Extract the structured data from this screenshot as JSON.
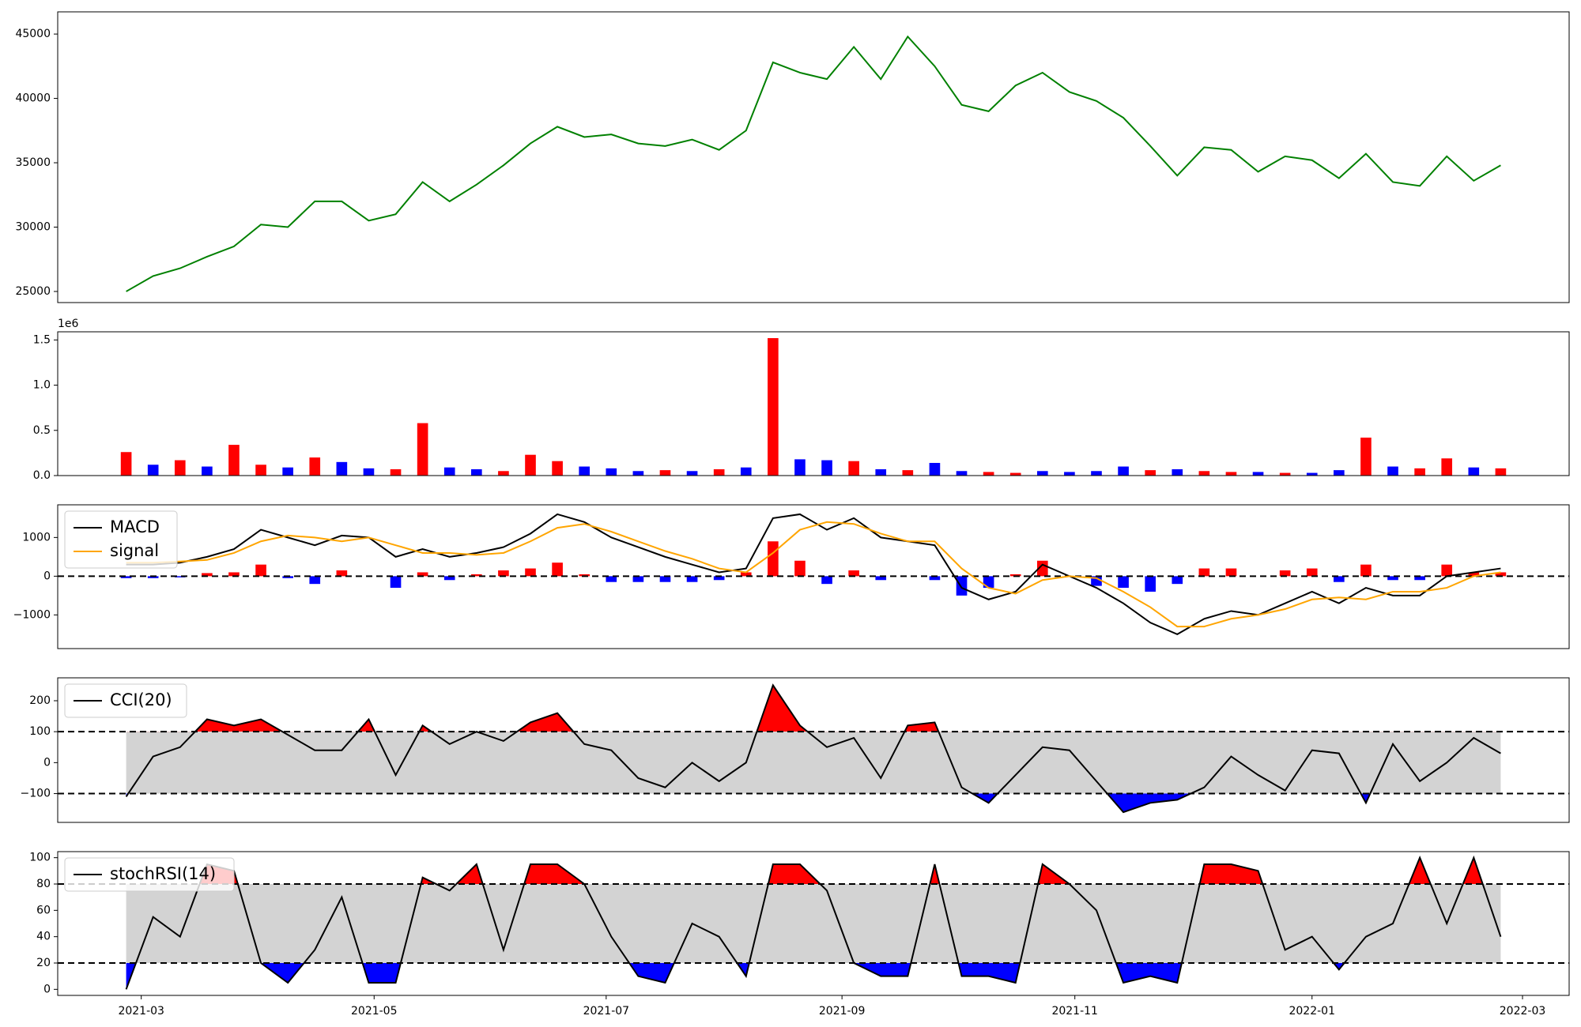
{
  "chart_data": [
    {
      "type": "line",
      "xlim": [
        -2.54,
        53.54
      ],
      "ylim": [
        24137,
        46725
      ],
      "yticks": [
        25000,
        30000,
        35000,
        40000,
        45000
      ],
      "series": [
        {
          "color": "#008000",
          "values": [
            25000,
            26200,
            26800,
            27700,
            28500,
            30200,
            30000,
            32000,
            32000,
            30500,
            31000,
            33500,
            32000,
            33300,
            34800,
            36500,
            37800,
            37000,
            37200,
            36500,
            36300,
            36800,
            36000,
            37500,
            42800,
            42000,
            41500,
            44000,
            41500,
            44800,
            42500,
            39500,
            39000,
            41000,
            42000,
            40500,
            39800,
            38500,
            36300,
            34000,
            36200,
            36000,
            34300,
            35500,
            35200,
            33800,
            35700,
            33500,
            33200,
            35500,
            33600,
            34800
          ]
        }
      ]
    },
    {
      "type": "bar",
      "offset_label": "1e6",
      "xlim": [
        -2.54,
        53.54
      ],
      "ylim": [
        0,
        1.59
      ],
      "yticks": [
        {
          "value": 0,
          "label": "0.0"
        },
        0.5,
        {
          "value": 1,
          "label": "1.0"
        },
        1.5
      ],
      "values": [
        0.26,
        0.12,
        0.17,
        0.1,
        0.34,
        0.12,
        0.09,
        0.2,
        0.15,
        0.08,
        0.07,
        0.58,
        0.09,
        0.07,
        0.05,
        0.23,
        0.16,
        0.1,
        0.08,
        0.05,
        0.06,
        0.05,
        0.07,
        0.09,
        1.52,
        0.18,
        0.17,
        0.16,
        0.07,
        0.06,
        0.14,
        0.05,
        0.04,
        0.03,
        0.05,
        0.04,
        0.05,
        0.1,
        0.06,
        0.07,
        0.05,
        0.04,
        0.04,
        0.03,
        0.03,
        0.06,
        0.42,
        0.1,
        0.08,
        0.19,
        0.09,
        0.08
      ],
      "colors": [
        "#ff0000",
        "#0000ff",
        "#ff0000",
        "#0000ff",
        "#ff0000",
        "#ff0000",
        "#0000ff",
        "#ff0000",
        "#0000ff",
        "#0000ff",
        "#ff0000",
        "#ff0000",
        "#0000ff",
        "#0000ff",
        "#ff0000",
        "#ff0000",
        "#ff0000",
        "#0000ff",
        "#0000ff",
        "#0000ff",
        "#ff0000",
        "#0000ff",
        "#ff0000",
        "#0000ff",
        "#ff0000",
        "#0000ff",
        "#0000ff",
        "#ff0000",
        "#0000ff",
        "#ff0000",
        "#0000ff",
        "#0000ff",
        "#ff0000",
        "#ff0000",
        "#0000ff",
        "#0000ff",
        "#0000ff",
        "#0000ff",
        "#ff0000",
        "#0000ff",
        "#ff0000",
        "#ff0000",
        "#0000ff",
        "#ff0000",
        "#0000ff",
        "#0000ff",
        "#ff0000",
        "#0000ff",
        "#ff0000",
        "#ff0000",
        "#0000ff",
        "#ff0000"
      ]
    },
    {
      "type": "macd",
      "hline": 0,
      "xlim": [
        -2.54,
        53.54
      ],
      "ylim": [
        -1870,
        1844
      ],
      "yticks": [
        {
          "value": -1000,
          "label": "−1000"
        },
        0,
        1000
      ],
      "series": [
        {
          "name": "MACD",
          "color": "#000000",
          "values": [
            300,
            300,
            350,
            500,
            700,
            1200,
            1000,
            800,
            1050,
            1000,
            500,
            700,
            500,
            600,
            750,
            1100,
            1600,
            1400,
            1000,
            750,
            500,
            300,
            100,
            200,
            1500,
            1600,
            1200,
            1500,
            1000,
            900,
            800,
            -300,
            -600,
            -400,
            300,
            0,
            -300,
            -700,
            -1200,
            -1500,
            -1100,
            -900,
            -1000,
            -700,
            -400,
            -700,
            -300,
            -500,
            -500,
            0,
            100,
            200
          ]
        },
        {
          "name": "signal",
          "color": "#ffa500",
          "values": [
            350,
            350,
            380,
            420,
            600,
            900,
            1050,
            1000,
            900,
            1000,
            800,
            600,
            600,
            550,
            600,
            900,
            1250,
            1350,
            1150,
            900,
            650,
            450,
            200,
            100,
            600,
            1200,
            1400,
            1350,
            1100,
            900,
            900,
            200,
            -300,
            -450,
            -100,
            0,
            -50,
            -400,
            -800,
            -1300,
            -1300,
            -1100,
            -1000,
            -850,
            -600,
            -550,
            -600,
            -400,
            -400,
            -300,
            0,
            100
          ]
        }
      ],
      "histogram": {
        "positive_color": "#ff0000",
        "negative_color": "#0000ff",
        "values": [
          -50,
          -50,
          -30,
          80,
          100,
          300,
          -50,
          -200,
          150,
          0,
          -300,
          100,
          -100,
          50,
          150,
          200,
          350,
          50,
          -150,
          -150,
          -150,
          -150,
          -100,
          100,
          900,
          400,
          -200,
          150,
          -100,
          0,
          -100,
          -500,
          -300,
          50,
          400,
          0,
          -250,
          -300,
          -400,
          -200,
          200,
          200,
          0,
          150,
          200,
          -150,
          300,
          -100,
          -100,
          300,
          100,
          100
        ]
      }
    },
    {
      "type": "oscillator",
      "upper": 100,
      "lower": -100,
      "upper_color": "#ff0000",
      "lower_color": "#0000ff",
      "band_color": "#d3d3d3",
      "xlim": [
        -2.54,
        53.54
      ],
      "ylim": [
        -193,
        274
      ],
      "yticks": [
        {
          "value": -100,
          "label": "−100"
        },
        0,
        100,
        200
      ],
      "series": [
        {
          "name": "CCI(20)",
          "color": "#000000",
          "values": [
            -110,
            20,
            50,
            140,
            120,
            140,
            90,
            40,
            40,
            140,
            -40,
            120,
            60,
            100,
            70,
            130,
            160,
            60,
            40,
            -50,
            -80,
            0,
            -60,
            0,
            250,
            120,
            50,
            80,
            -50,
            120,
            130,
            -80,
            -130,
            -40,
            50,
            40,
            -60,
            -160,
            -130,
            -120,
            -80,
            20,
            -40,
            -90,
            40,
            30,
            -130,
            60,
            -60,
            0,
            80,
            30
          ]
        }
      ]
    },
    {
      "type": "oscillator",
      "upper": 80,
      "lower": 20,
      "upper_color": "#ff0000",
      "lower_color": "#0000ff",
      "band_color": "#d3d3d3",
      "xlim": [
        -2.54,
        53.54
      ],
      "ylim": [
        -4.6,
        104.6
      ],
      "yticks": [
        0,
        20,
        40,
        60,
        80,
        100
      ],
      "xticks": [
        {
          "value": 0.56,
          "label": "2021-03"
        },
        {
          "value": 9.2,
          "label": "2021-05"
        },
        {
          "value": 17.81,
          "label": "2021-07"
        },
        {
          "value": 26.56,
          "label": "2021-09"
        },
        {
          "value": 35.2,
          "label": "2021-11"
        },
        {
          "value": 44.0,
          "label": "2022-01"
        },
        {
          "value": 51.81,
          "label": "2022-03"
        }
      ],
      "series": [
        {
          "name": "stochRSI(14)",
          "color": "#000000",
          "values": [
            0,
            55,
            40,
            95,
            90,
            20,
            5,
            30,
            70,
            5,
            5,
            85,
            75,
            95,
            30,
            95,
            95,
            80,
            40,
            10,
            5,
            50,
            40,
            10,
            95,
            95,
            75,
            20,
            10,
            10,
            95,
            10,
            10,
            5,
            95,
            80,
            60,
            5,
            10,
            5,
            95,
            95,
            90,
            30,
            40,
            15,
            40,
            50,
            100,
            50,
            100,
            40
          ]
        }
      ]
    }
  ]
}
